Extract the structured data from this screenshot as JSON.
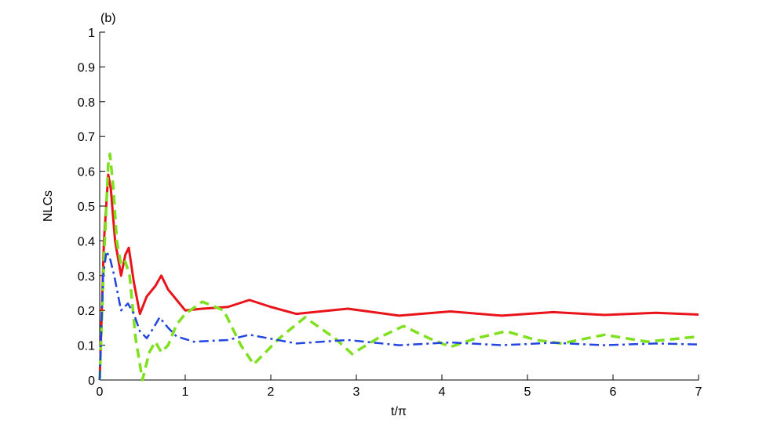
{
  "chart_data": {
    "type": "line",
    "annotation": "(b)",
    "x_label": "t/π",
    "y_label": "NLCs",
    "xlim": [
      0,
      7
    ],
    "ylim": [
      0,
      1
    ],
    "xticks": [
      0,
      1,
      2,
      3,
      4,
      5,
      6,
      7
    ],
    "yticks": [
      0,
      0.1,
      0.2,
      0.3,
      0.4,
      0.5,
      0.6,
      0.7,
      0.8,
      0.9,
      1
    ],
    "grid": false,
    "series": [
      {
        "color": "#e8141a",
        "dash": "solid",
        "width": 3,
        "x": [
          0,
          0.05,
          0.1,
          0.13,
          0.18,
          0.25,
          0.3,
          0.34,
          0.4,
          0.47,
          0.55,
          0.65,
          0.72,
          0.8,
          0.9,
          1.0,
          1.2,
          1.5,
          1.75,
          2.0,
          2.3,
          2.9,
          3.5,
          4.1,
          4.7,
          5.3,
          5.9,
          6.5,
          7
        ],
        "values": [
          0,
          0.4,
          0.59,
          0.55,
          0.4,
          0.3,
          0.36,
          0.38,
          0.28,
          0.19,
          0.24,
          0.27,
          0.3,
          0.26,
          0.23,
          0.2,
          0.205,
          0.21,
          0.23,
          0.21,
          0.19,
          0.205,
          0.185,
          0.197,
          0.185,
          0.195,
          0.187,
          0.193,
          0.188
        ]
      },
      {
        "color": "#7ee01e",
        "dash": "dashed",
        "width": 3.5,
        "x": [
          0,
          0.05,
          0.1,
          0.12,
          0.16,
          0.2,
          0.25,
          0.3,
          0.35,
          0.42,
          0.5,
          0.58,
          0.65,
          0.72,
          0.8,
          0.9,
          1.0,
          1.2,
          1.45,
          1.65,
          1.8,
          2.1,
          2.4,
          2.75,
          2.95,
          3.25,
          3.55,
          3.85,
          4.1,
          4.4,
          4.75,
          5.1,
          5.4,
          5.9,
          6.4,
          7
        ],
        "values": [
          0,
          0.35,
          0.62,
          0.65,
          0.55,
          0.4,
          0.33,
          0.34,
          0.3,
          0.12,
          0,
          0.08,
          0.11,
          0.08,
          0.1,
          0.16,
          0.19,
          0.225,
          0.2,
          0.1,
          0.045,
          0.12,
          0.18,
          0.12,
          0.075,
          0.12,
          0.155,
          0.12,
          0.095,
          0.12,
          0.14,
          0.115,
          0.105,
          0.13,
          0.11,
          0.125
        ]
      },
      {
        "color": "#2244e0",
        "dash": "dashdot",
        "width": 2.5,
        "x": [
          0,
          0.04,
          0.08,
          0.12,
          0.17,
          0.25,
          0.33,
          0.4,
          0.47,
          0.55,
          0.63,
          0.7,
          0.8,
          0.9,
          1.1,
          1.5,
          1.75,
          2.3,
          2.9,
          3.5,
          4.1,
          4.7,
          5.3,
          5.9,
          6.5,
          7
        ],
        "values": [
          0,
          0.3,
          0.37,
          0.35,
          0.3,
          0.2,
          0.22,
          0.19,
          0.14,
          0.12,
          0.15,
          0.18,
          0.15,
          0.125,
          0.11,
          0.115,
          0.13,
          0.105,
          0.115,
          0.1,
          0.108,
          0.1,
          0.107,
          0.1,
          0.105,
          0.102
        ]
      }
    ]
  }
}
